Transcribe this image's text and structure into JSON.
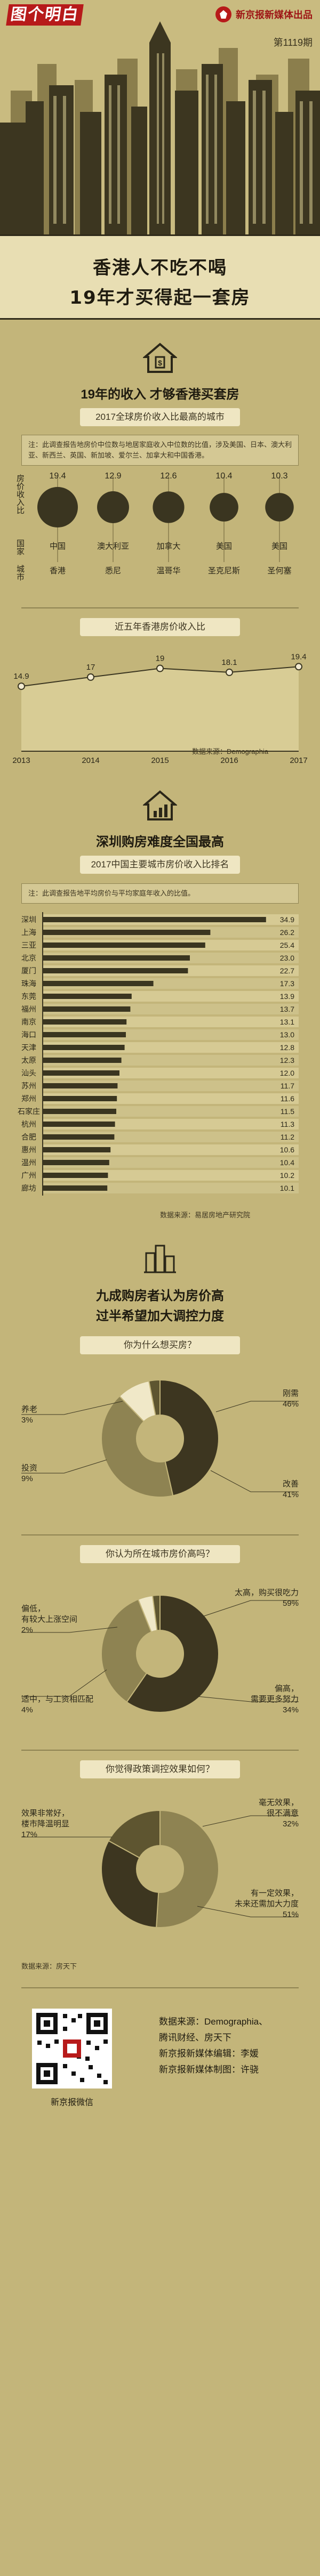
{
  "header": {
    "logo": "图个明白",
    "publisher": "新京报新媒体出品",
    "issue": "第1119期"
  },
  "headline": {
    "line1": "香港人不吃不喝",
    "line2": "19年才买得起一套房"
  },
  "section1": {
    "icon": "house-dollar-icon",
    "title": "19年的收入 才够香港买套房",
    "pill": "2017全球房价收入比最高的城市",
    "note": "注：此调查报告地房价中位数与地居家庭收入中位数的比值，涉及美国、日本、澳大利亚、新西兰、英国、新加坡、爱尔兰、加拿大和中国香港。",
    "row_label_ratio": "房价收入比",
    "row_label_country": "国家",
    "row_label_city": "城市"
  },
  "section2": {
    "pill": "近五年香港房价收入比",
    "source": "数据来源：Demographia"
  },
  "section3": {
    "icon": "house-chart-icon",
    "title": "深圳购房难度全国最高",
    "pill": "2017中国主要城市房价收入比排名",
    "note": "注：此调查报告地平均房价与平均家庭年收入的比值。",
    "source": "数据来源：易居房地产研究院"
  },
  "section4": {
    "icon": "buildings-icon",
    "title_line1": "九成购房者认为房价高",
    "title_line2": "过半希望加大调控力度",
    "q1": "你为什么想买房？",
    "q2": "你认为所在城市房价高吗？",
    "q3": "你觉得政策调控效果如何？",
    "source": "数据来源：房天下"
  },
  "footer": {
    "qr_caption": "新京报微信",
    "line1": "数据来源：Demographia、",
    "line2": "腾讯财经、房天下",
    "line3": "新京报新媒体编辑：李媛",
    "line4": "新京报新媒体制图：许骁"
  },
  "chart_data": [
    {
      "type": "bar",
      "title": "2017全球房价收入比最高的城市",
      "categories": [
        "香港",
        "悉尼",
        "温哥华",
        "圣克尼斯",
        "圣何塞"
      ],
      "countries": [
        "中国",
        "澳大利亚",
        "加拿大",
        "美国",
        "美国"
      ],
      "values": [
        19.4,
        12.9,
        12.6,
        10.4,
        10.3
      ]
    },
    {
      "type": "area",
      "title": "近五年香港房价收入比",
      "x": [
        "2013",
        "2014",
        "2015",
        "2016",
        "2017"
      ],
      "values": [
        14.9,
        17,
        19,
        18.1,
        19.4
      ],
      "ylim": [
        0,
        22
      ]
    },
    {
      "type": "bar",
      "title": "2017中国主要城市房价收入比排名",
      "categories": [
        "深圳",
        "上海",
        "三亚",
        "北京",
        "厦门",
        "珠海",
        "东莞",
        "福州",
        "南京",
        "海口",
        "天津",
        "太原",
        "汕头",
        "苏州",
        "郑州",
        "石家庄",
        "杭州",
        "合肥",
        "惠州",
        "温州",
        "广州",
        "廊坊"
      ],
      "values": [
        34.9,
        26.2,
        25.4,
        23.0,
        22.7,
        17.3,
        13.9,
        13.7,
        13.1,
        13.0,
        12.8,
        12.3,
        12.0,
        11.7,
        11.6,
        11.5,
        11.3,
        11.2,
        10.6,
        10.4,
        10.2,
        10.1
      ],
      "xlim": [
        0,
        35
      ]
    },
    {
      "type": "pie",
      "title": "你为什么想买房？",
      "series": [
        {
          "name": "刚需",
          "value": 46,
          "label": "46%"
        },
        {
          "name": "改善",
          "value": 41,
          "label": "41%"
        },
        {
          "name": "投资",
          "value": 9,
          "label": "9%"
        },
        {
          "name": "养老",
          "value": 3,
          "label": "3%"
        }
      ]
    },
    {
      "type": "pie",
      "title": "你认为所在城市房价高吗？",
      "series": [
        {
          "name": "太高，购买很吃力",
          "value": 59,
          "label": "59%"
        },
        {
          "name": "偏高，需要更多努力",
          "value": 34,
          "label": "34%"
        },
        {
          "name": "适中，与工资相匹配",
          "value": 4,
          "label": "4%"
        },
        {
          "name": "偏低，有较大上涨空间",
          "value": 2,
          "label": "2%"
        }
      ]
    },
    {
      "type": "pie",
      "title": "你觉得政策调控效果如何？",
      "series": [
        {
          "name": "有一定效果，未来还需加大力度",
          "value": 51,
          "label": "51%"
        },
        {
          "name": "毫无效果，很不满意",
          "value": 32,
          "label": "32%"
        },
        {
          "name": "效果非常好，楼市降温明显",
          "value": 17,
          "label": "17%"
        }
      ]
    }
  ],
  "colors": {
    "background": "#c3b57a",
    "dark": "#3a3520",
    "mid": "#6b6035",
    "light": "#e8deb3",
    "accent": "#b71a1a"
  }
}
